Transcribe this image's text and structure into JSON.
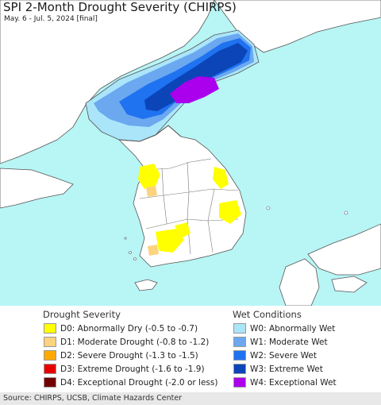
{
  "header": {
    "title": "SPI 2-Month Drought Severity (CHIRPS)",
    "subtitle": "May. 6 - Jul. 5, 2024 [final]"
  },
  "colors": {
    "ocean": "#b8f5f5",
    "land_base": "#ffffff",
    "neighbor_land": "#ffffff",
    "border": "#555555"
  },
  "legend": {
    "drought": {
      "title": "Drought Severity",
      "items": [
        {
          "label": "D0: Abnormally Dry (-0.5 to -0.7)",
          "color": "#ffff00"
        },
        {
          "label": "D1: Moderate Drought (-0.8 to -1.2)",
          "color": "#fcd37f"
        },
        {
          "label": "D2: Severe Drought (-1.3 to -1.5)",
          "color": "#ffaa00"
        },
        {
          "label": "D3: Extreme Drought (-1.6 to -1.9)",
          "color": "#e60000"
        },
        {
          "label": "D4: Exceptional Drought (-2.0 or less)",
          "color": "#730000"
        }
      ]
    },
    "wet": {
      "title": "Wet Conditions",
      "items": [
        {
          "label": "W0: Abnormally Wet",
          "color": "#aae5fa"
        },
        {
          "label": "W1: Moderate Wet",
          "color": "#6ba8f0"
        },
        {
          "label": "W2: Severe Wet",
          "color": "#1f72f0"
        },
        {
          "label": "W3: Extreme Wet",
          "color": "#0b45b8"
        },
        {
          "label": "W4: Exceptional Wet",
          "color": "#aa00ee"
        }
      ]
    }
  },
  "footer": {
    "source": "Source: CHIRPS, UCSB, Climate Hazards Center"
  }
}
